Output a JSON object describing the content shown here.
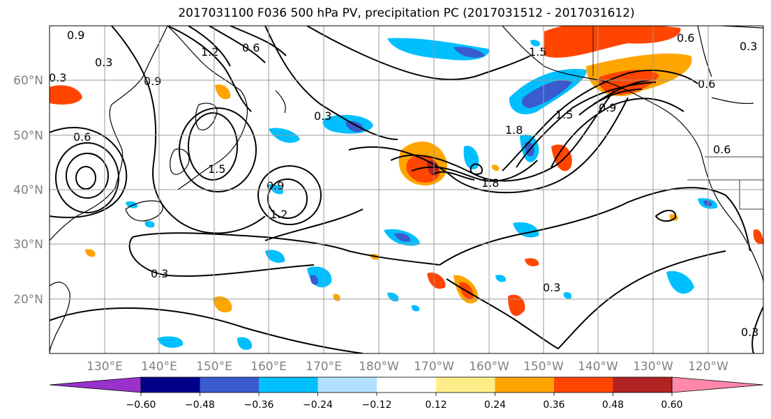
{
  "title": "2017031100 F036 500 hPa PV, precipitation PC (2017031512 - 2017031612)",
  "lat_labels": [
    "60°N",
    "50°N",
    "40°N",
    "30°N",
    "20°N"
  ],
  "lon_labels": [
    "130°E",
    "140°E",
    "150°E",
    "160°E",
    "170°E",
    "180°W",
    "170°W",
    "160°W",
    "150°W",
    "140°W",
    "130°W",
    "120°W"
  ],
  "colorbar": {
    "tick_labels": [
      "−0.60",
      "−0.48",
      "−0.36",
      "−0.24",
      "−0.12",
      "0.12",
      "0.24",
      "0.36",
      "0.48",
      "0.60"
    ],
    "colors": [
      "#9932cc",
      "#00008b",
      "#3a5bcd",
      "#00bfff",
      "#b0e2ff",
      "#ffffff",
      "#ffee88",
      "#ffa500",
      "#ff4500",
      "#b22222",
      "#ff88aa"
    ]
  },
  "contour_labels": [
    "0.9",
    "0.3",
    "0.3",
    "0.6",
    "0.6",
    "1.5",
    "1.2",
    "0.9",
    "0.3",
    "1.8",
    "1.8",
    "1.5",
    "1.5",
    "0.9",
    "0.6",
    "0.3",
    "0.6",
    "0.3",
    "0.3",
    "0.3",
    "1.2",
    "0.9",
    "0.6"
  ]
}
